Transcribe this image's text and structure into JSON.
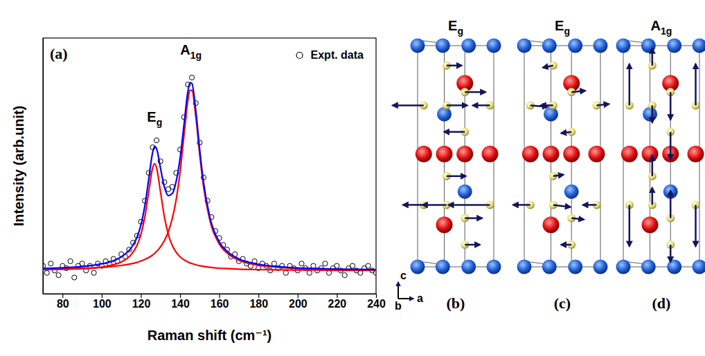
{
  "chart_data": {
    "type": "scatter",
    "panel_label": "(a)",
    "xlabel": "Raman shift (cm⁻¹)",
    "ylabel": "Intensity (arb.unit)",
    "xlim": [
      70,
      240
    ],
    "xticks": [
      80,
      100,
      120,
      140,
      160,
      180,
      200,
      220,
      240
    ],
    "ylim": [
      0,
      110
    ],
    "tick_labels": "x",
    "legend": "upper right",
    "series": [
      {
        "name": "Expt. data",
        "type": "scatter",
        "marker": "circle",
        "color": "#000000",
        "x": [
          70,
          72,
          74,
          76,
          78,
          80,
          82,
          84,
          86,
          88,
          90,
          92,
          94,
          96,
          98,
          100,
          102,
          104,
          106,
          108,
          110,
          112,
          114,
          116,
          118,
          120,
          122,
          124,
          126,
          128,
          130,
          132,
          134,
          136,
          138,
          140,
          142,
          144,
          146,
          148,
          150,
          152,
          154,
          156,
          158,
          160,
          162,
          164,
          166,
          168,
          170,
          172,
          174,
          176,
          178,
          180,
          182,
          184,
          186,
          188,
          190,
          192,
          194,
          196,
          198,
          200,
          202,
          204,
          206,
          208,
          210,
          212,
          214,
          216,
          218,
          220,
          222,
          224,
          226,
          228,
          230,
          232,
          234,
          236,
          238,
          240
        ],
        "values": [
          12,
          9,
          13,
          10,
          8,
          12,
          11,
          14,
          7,
          12,
          13,
          10,
          12,
          9,
          13,
          12,
          14,
          13,
          15,
          14,
          17,
          16,
          19,
          22,
          25,
          31,
          40,
          52,
          63,
          66,
          57,
          48,
          45,
          46,
          52,
          62,
          76,
          90,
          93,
          82,
          65,
          50,
          40,
          33,
          27,
          24,
          21,
          19,
          16,
          17,
          14,
          15,
          13,
          12,
          14,
          11,
          13,
          12,
          10,
          13,
          11,
          12,
          9,
          12,
          11,
          10,
          13,
          11,
          9,
          12,
          10,
          11,
          13,
          9,
          11,
          12,
          10,
          8,
          11,
          12,
          10,
          9,
          11,
          12,
          10,
          9
        ]
      },
      {
        "type": "line",
        "color": "#ff0000",
        "x": [
          70,
          80,
          90,
          100,
          105,
          110,
          115,
          118,
          120,
          122,
          124,
          126,
          127,
          128,
          130,
          132,
          134,
          136,
          138,
          140,
          142,
          144,
          145,
          146,
          148,
          150,
          152,
          155,
          160,
          165,
          170,
          180,
          190,
          200,
          210,
          220,
          230,
          240
        ],
        "values": [
          10.4,
          10.5,
          10.8,
          11.5,
          12.3,
          13.7,
          16.8,
          20.8,
          25.5,
          33,
          43.8,
          54.2,
          56,
          54.2,
          43.8,
          33,
          25.5,
          20.8,
          17.9,
          15.9,
          14.6,
          13.7,
          13.3,
          13,
          12.5,
          12.1,
          11.8,
          11.4,
          11,
          10.8,
          10.6,
          10.4,
          10.3,
          10.2,
          10.2,
          10.1,
          10.1,
          10.1
        ]
      },
      {
        "type": "line",
        "color": "#ff0000",
        "x": [
          70,
          80,
          90,
          100,
          105,
          110,
          115,
          118,
          120,
          122,
          124,
          126,
          127,
          128,
          130,
          132,
          134,
          136,
          138,
          140,
          142,
          144,
          145,
          146,
          148,
          150,
          152,
          155,
          160,
          165,
          170,
          180,
          190,
          200,
          210,
          220,
          230,
          240
        ],
        "values": [
          10.5,
          10.7,
          10.9,
          11.3,
          11.7,
          12.2,
          12.9,
          13.5,
          14.1,
          14.8,
          15.6,
          16.7,
          17.4,
          18.2,
          20.2,
          22.9,
          26.7,
          32.3,
          40.5,
          52.4,
          68.2,
          83.4,
          87.5,
          87.5,
          76.4,
          59.9,
          45.9,
          32.3,
          21.4,
          16.8,
          14.4,
          12.3,
          11.4,
          10.9,
          10.7,
          10.5,
          10.4,
          10.3
        ]
      },
      {
        "type": "line",
        "color": "#0000ff",
        "x": [
          70,
          80,
          90,
          100,
          105,
          110,
          115,
          118,
          120,
          122,
          124,
          126,
          127,
          128,
          130,
          132,
          134,
          136,
          138,
          140,
          142,
          144,
          145,
          146,
          148,
          150,
          152,
          155,
          160,
          165,
          170,
          180,
          190,
          200,
          210,
          220,
          230,
          240
        ],
        "values": [
          10.9,
          11.2,
          11.7,
          12.9,
          13.9,
          15.9,
          19.7,
          24.3,
          29.6,
          37.8,
          49.4,
          60.9,
          63.4,
          62.4,
          54,
          45.9,
          42.2,
          43.1,
          48.4,
          58.3,
          72.8,
          87.1,
          90.8,
          90.5,
          78.9,
          62,
          47.7,
          33.7,
          22.4,
          17.6,
          15,
          12.7,
          11.7,
          11.1,
          10.9,
          10.6,
          10.5,
          10.4
        ]
      }
    ],
    "annotations": [
      {
        "base": "E",
        "sub": "g",
        "x": 127,
        "y": 74
      },
      {
        "base": "A",
        "sub": "1g",
        "x": 145.5,
        "y": 103
      }
    ]
  },
  "diagrams": [
    {
      "label": "(b)",
      "title": {
        "base": "E",
        "sub": "g"
      }
    },
    {
      "label": "(c)",
      "title": {
        "base": "E",
        "sub": "g"
      }
    },
    {
      "label": "(d)",
      "title": {
        "base": "A",
        "sub": "1g"
      }
    }
  ],
  "axes_indicator": {
    "vertical": "c",
    "depth": "b",
    "horizontal": "a"
  }
}
